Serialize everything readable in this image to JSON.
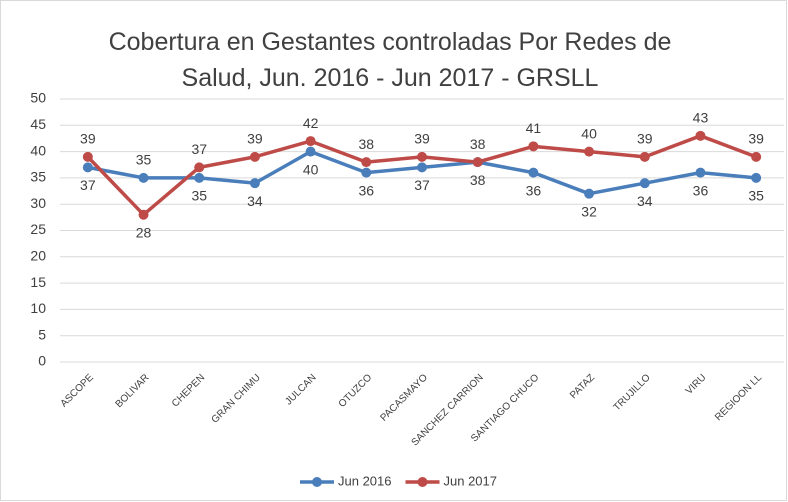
{
  "chart_data": {
    "type": "line",
    "title": "Cobertura  en Gestantes controladas Por Redes de Salud, Jun. 2016 - Jun 2017 - GRSLL",
    "categories": [
      "ASCOPE",
      "BOLIVAR",
      "CHEPEN",
      "GRAN CHIMU",
      "JULCAN",
      "OTUZCO",
      "PACASMAYO",
      "SANCHEZ CARRION",
      "SANTIAGO CHUCO",
      "PATAZ",
      "TRUJILLO",
      "VIRU",
      "REGIOON LL"
    ],
    "series": [
      {
        "name": "Jun 2016",
        "color": "#4a7ebb",
        "values": [
          37,
          35,
          35,
          34,
          40,
          36,
          37,
          38,
          36,
          32,
          34,
          36,
          35
        ]
      },
      {
        "name": "Jun 2017",
        "color": "#be4b48",
        "values": [
          39,
          28,
          37,
          39,
          42,
          38,
          39,
          38,
          41,
          40,
          39,
          43,
          39
        ]
      }
    ],
    "ylim": [
      0,
      50
    ],
    "yticks": [
      0,
      5,
      10,
      15,
      20,
      25,
      30,
      35,
      40,
      45,
      50
    ],
    "grid": true,
    "legend": "bottom"
  }
}
